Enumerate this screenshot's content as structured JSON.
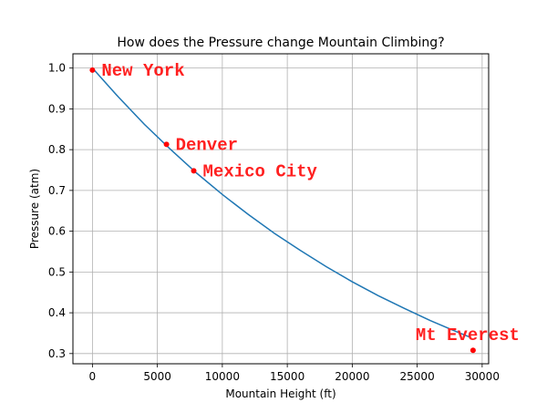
{
  "chart_data": {
    "type": "line",
    "title": "How does the Pressure change Mountain Climbing?",
    "xlabel": "Mountain Height (ft)",
    "ylabel": "Pressure (atm)",
    "xlim": [
      -1500,
      30500
    ],
    "ylim": [
      0.275,
      1.035
    ],
    "xticks": [
      0,
      5000,
      10000,
      15000,
      20000,
      25000,
      30000
    ],
    "yticks": [
      0.3,
      0.4,
      0.5,
      0.6,
      0.7,
      0.8,
      0.9,
      1.0
    ],
    "grid": true,
    "series": [
      {
        "color": "#1f77b4",
        "x": [
          0,
          2000,
          4000,
          6000,
          8000,
          10000,
          12000,
          14000,
          16000,
          18000,
          20000,
          22000,
          24000,
          26000,
          28000,
          29000
        ],
        "y": [
          1.0,
          0.929,
          0.862,
          0.801,
          0.743,
          0.69,
          0.641,
          0.595,
          0.553,
          0.513,
          0.476,
          0.442,
          0.411,
          0.381,
          0.354,
          0.341
        ]
      }
    ],
    "points": [
      {
        "label": "New York",
        "x": 0,
        "y": 0.995
      },
      {
        "label": "Denver",
        "x": 5700,
        "y": 0.813
      },
      {
        "label": "Mexico City",
        "x": 7800,
        "y": 0.748
      },
      {
        "label": "Mt Everest",
        "x": 29300,
        "y": 0.308
      }
    ],
    "point_color": "#ff0000",
    "annotation_color": "#ff2020"
  }
}
